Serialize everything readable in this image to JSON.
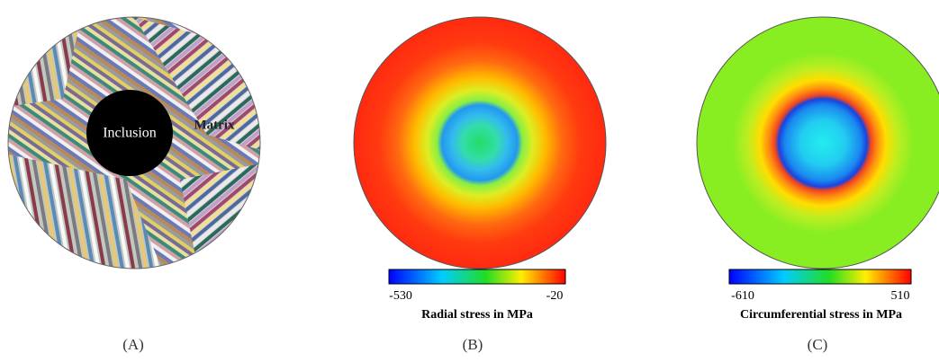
{
  "panels": [
    {
      "label": "(A)",
      "annotations": [
        "Inclusion",
        "Matrix"
      ]
    },
    {
      "label": "(B)",
      "colorbar": {
        "min": -530,
        "max": -20,
        "title": "Radial stress in MPa"
      }
    },
    {
      "label": "(C)",
      "colorbar": {
        "min": -610,
        "max": 510,
        "title": "Circumferential stress in MPa"
      }
    }
  ]
}
